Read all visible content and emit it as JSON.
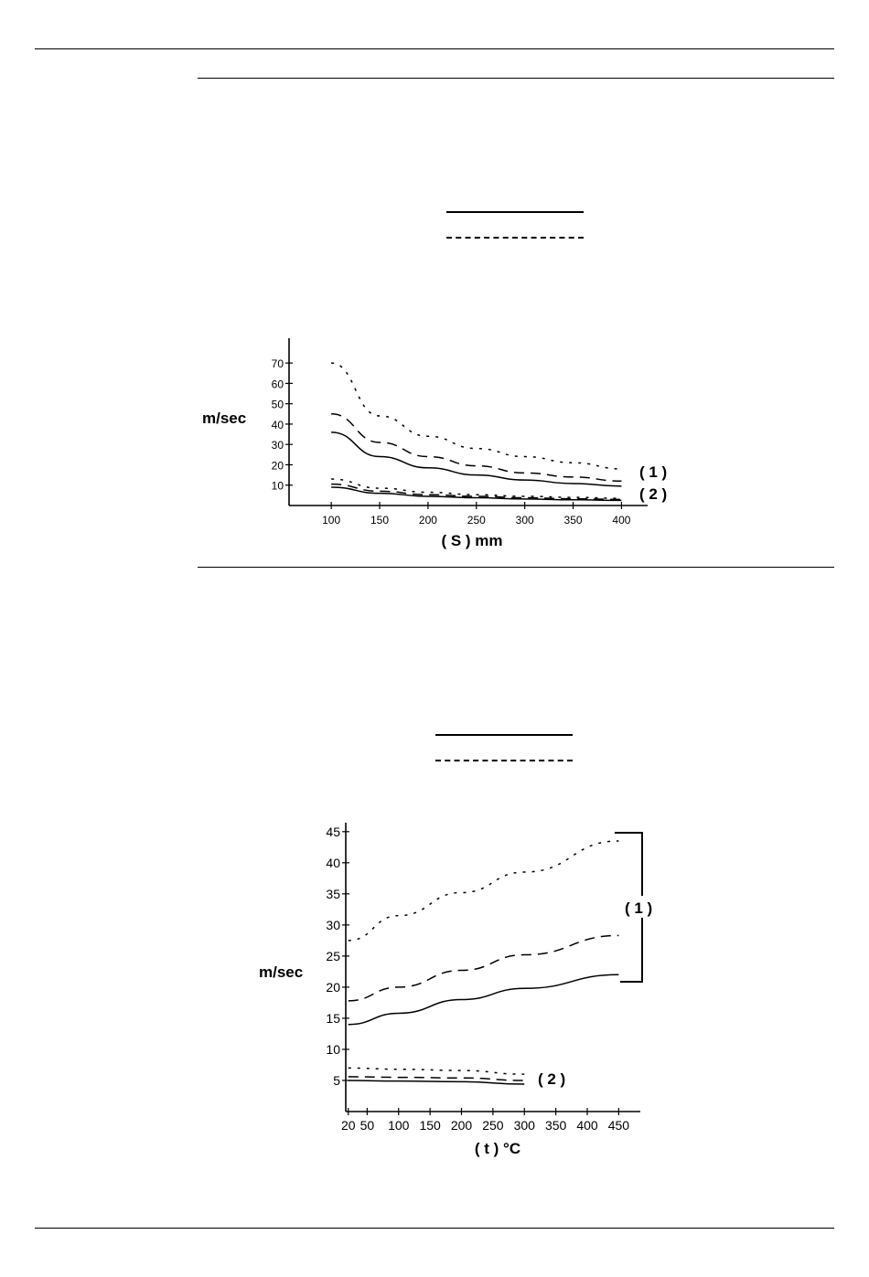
{
  "chart_data": [
    {
      "type": "line",
      "title": "",
      "ylabel": "m/sec",
      "xlabel": "( S ) mm",
      "xlim": [
        80,
        410
      ],
      "ylim": [
        0,
        75
      ],
      "x_ticks": [
        100,
        150,
        200,
        250,
        300,
        350,
        400
      ],
      "y_ticks": [
        10,
        20,
        30,
        40,
        50,
        60,
        70
      ],
      "grid": false,
      "legend": "above chart (line samples only, no text)",
      "group_labels": [
        "( 1 )",
        "( 2 )"
      ],
      "series": [
        {
          "style": "solid",
          "group": "( 1 )",
          "x": [
            100,
            150,
            200,
            250,
            300,
            350,
            400
          ],
          "values": [
            36,
            24,
            18.5,
            15,
            12.5,
            10.8,
            9.5
          ]
        },
        {
          "style": "dashed",
          "group": "( 1 )",
          "x": [
            100,
            150,
            200,
            250,
            300,
            350,
            400
          ],
          "values": [
            45,
            31,
            24,
            19.5,
            16,
            14,
            12
          ]
        },
        {
          "style": "dotted",
          "group": "( 1 )",
          "x": [
            100,
            150,
            200,
            250,
            300,
            350,
            400
          ],
          "values": [
            70,
            44,
            34,
            28,
            24,
            21,
            18
          ]
        },
        {
          "style": "solid",
          "group": "( 2 )",
          "x": [
            100,
            150,
            200,
            250,
            300,
            350,
            400
          ],
          "values": [
            9,
            6,
            4.5,
            3.8,
            3.2,
            2.8,
            2.5
          ]
        },
        {
          "style": "dashed",
          "group": "( 2 )",
          "x": [
            100,
            150,
            200,
            250,
            300,
            350,
            400
          ],
          "values": [
            10.5,
            7,
            5.3,
            4.5,
            3.8,
            3.3,
            3
          ]
        },
        {
          "style": "dotted",
          "group": "( 2 )",
          "x": [
            100,
            150,
            200,
            250,
            300,
            350,
            400
          ],
          "values": [
            13,
            8.5,
            6.5,
            5.3,
            4.5,
            4,
            3.5
          ]
        }
      ]
    },
    {
      "type": "line",
      "title": "",
      "ylabel": "m/sec",
      "xlabel": "( t ) °C",
      "xlim": [
        0,
        480
      ],
      "ylim": [
        0,
        46
      ],
      "x_ticks": [
        20,
        50,
        100,
        150,
        200,
        250,
        300,
        350,
        400,
        450
      ],
      "y_ticks": [
        5,
        10,
        15,
        20,
        25,
        30,
        35,
        40,
        45
      ],
      "grid": false,
      "legend": "above chart (line samples only, no text)",
      "group_labels": [
        "( 1 )",
        "( 2 )"
      ],
      "series": [
        {
          "style": "solid",
          "group": "( 1 )",
          "x": [
            20,
            100,
            200,
            300,
            450
          ],
          "values": [
            14,
            15.8,
            18,
            19.8,
            22
          ]
        },
        {
          "style": "dashed",
          "group": "( 1 )",
          "x": [
            20,
            100,
            200,
            300,
            450
          ],
          "values": [
            17.8,
            20,
            22.7,
            25.2,
            28.3
          ]
        },
        {
          "style": "dotted",
          "group": "( 1 )",
          "x": [
            20,
            100,
            200,
            300,
            450
          ],
          "values": [
            27.5,
            31.5,
            35.2,
            38.5,
            43.5
          ]
        },
        {
          "style": "solid",
          "group": "( 2 )",
          "x": [
            20,
            100,
            200,
            300
          ],
          "values": [
            5,
            4.9,
            4.8,
            4.4
          ]
        },
        {
          "style": "dashed",
          "group": "( 2 )",
          "x": [
            20,
            100,
            200,
            300
          ],
          "values": [
            5.6,
            5.5,
            5.4,
            5
          ]
        },
        {
          "style": "dotted",
          "group": "( 2 )",
          "x": [
            20,
            100,
            200,
            300
          ],
          "values": [
            7,
            6.8,
            6.6,
            6
          ]
        }
      ]
    }
  ]
}
